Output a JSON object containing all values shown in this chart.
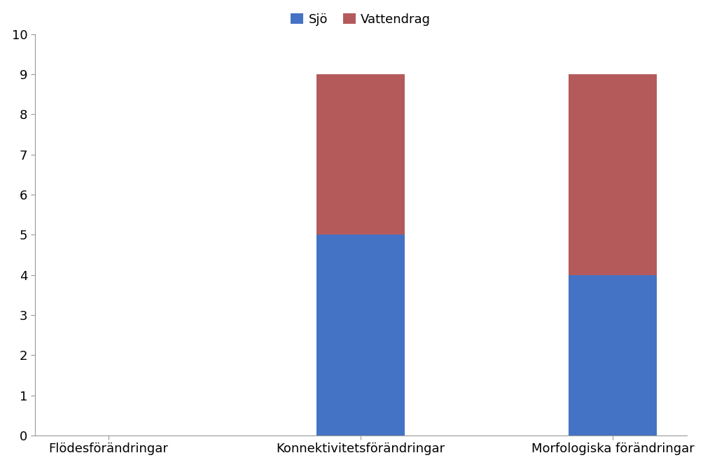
{
  "categories": [
    "Flödesförändringar",
    "Konnektivitetsförändringar",
    "Morfologiska förändringar"
  ],
  "sjo_values": [
    0,
    5,
    4
  ],
  "vattendrag_values": [
    0,
    4,
    5
  ],
  "sjo_color": "#4472C4",
  "vattendrag_color": "#B55A5A",
  "legend_labels": [
    "Sjö",
    "Vattendrag"
  ],
  "ylim": [
    0,
    10
  ],
  "yticks": [
    0,
    1,
    2,
    3,
    4,
    5,
    6,
    7,
    8,
    9,
    10
  ],
  "background_color": "#ffffff",
  "bar_width": 0.35,
  "fontsize_ticks": 13,
  "fontsize_legend": 13,
  "spine_color": "#999999"
}
